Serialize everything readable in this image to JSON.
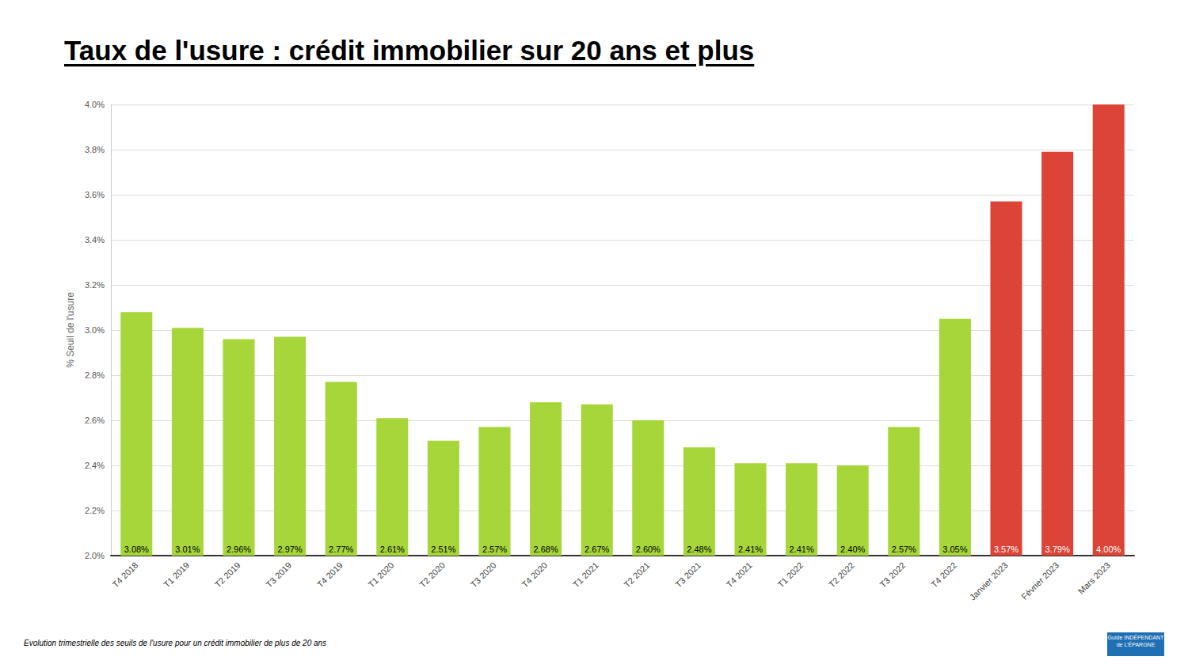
{
  "chart_data": {
    "type": "bar",
    "title": "Taux de l'usure : crédit immobilier sur 20 ans et plus",
    "y_label": "% Seuil de l'usure",
    "footer": "Evolution trimestrielle des seuils de l'usure pour un crédit immobilier de plus de 20 ans",
    "logo": "Guide INDÉPENDANT de L'ÉPARGNE",
    "categories": [
      "T4 2018",
      "T1 2019",
      "T2 2019",
      "T3 2019",
      "T4 2019",
      "T1 2020",
      "T2 2020",
      "T3 2020",
      "T4 2020",
      "T1 2021",
      "T2 2021",
      "T3 2021",
      "T4 2021",
      "T1 2022",
      "T2 2022",
      "T3 2022",
      "T4 2022",
      "Janvier 2023",
      "Février 2023",
      "Mars 2023"
    ],
    "values": [
      3.08,
      3.01,
      2.96,
      2.97,
      2.77,
      2.61,
      2.51,
      2.57,
      2.68,
      2.67,
      2.6,
      2.48,
      2.41,
      2.41,
      2.4,
      2.57,
      3.05,
      3.57,
      3.79,
      4.0
    ],
    "value_labels": [
      "3.08%",
      "3.01%",
      "2.96%",
      "2.97%",
      "2.77%",
      "2.61%",
      "2.51%",
      "2.57%",
      "2.68%",
      "2.67%",
      "2.60%",
      "2.48%",
      "2.41%",
      "2.41%",
      "2.40%",
      "2.57%",
      "3.05%",
      "3.57%",
      "3.79%",
      "4.00%"
    ],
    "colors": [
      "#a6d63a",
      "#a6d63a",
      "#a6d63a",
      "#a6d63a",
      "#a6d63a",
      "#a6d63a",
      "#a6d63a",
      "#a6d63a",
      "#a6d63a",
      "#a6d63a",
      "#a6d63a",
      "#a6d63a",
      "#a6d63a",
      "#a6d63a",
      "#a6d63a",
      "#a6d63a",
      "#a6d63a",
      "#db4437",
      "#db4437",
      "#db4437"
    ],
    "ylim": [
      2.0,
      4.0
    ],
    "yticks": [
      {
        "value": 2.0,
        "label": "2.0%"
      },
      {
        "value": 2.2,
        "label": "2.2%"
      },
      {
        "value": 2.4,
        "label": "2.4%"
      },
      {
        "value": 2.6,
        "label": "2.6%"
      },
      {
        "value": 2.8,
        "label": "2.8%"
      },
      {
        "value": 3.0,
        "label": "3.0%"
      },
      {
        "value": 3.2,
        "label": "3.2%"
      },
      {
        "value": 3.4,
        "label": "3.4%"
      },
      {
        "value": 3.6,
        "label": "3.6%"
      },
      {
        "value": 3.8,
        "label": "3.8%"
      },
      {
        "value": 4.0,
        "label": "4.0%"
      }
    ],
    "grid": true,
    "data_labels": true
  }
}
